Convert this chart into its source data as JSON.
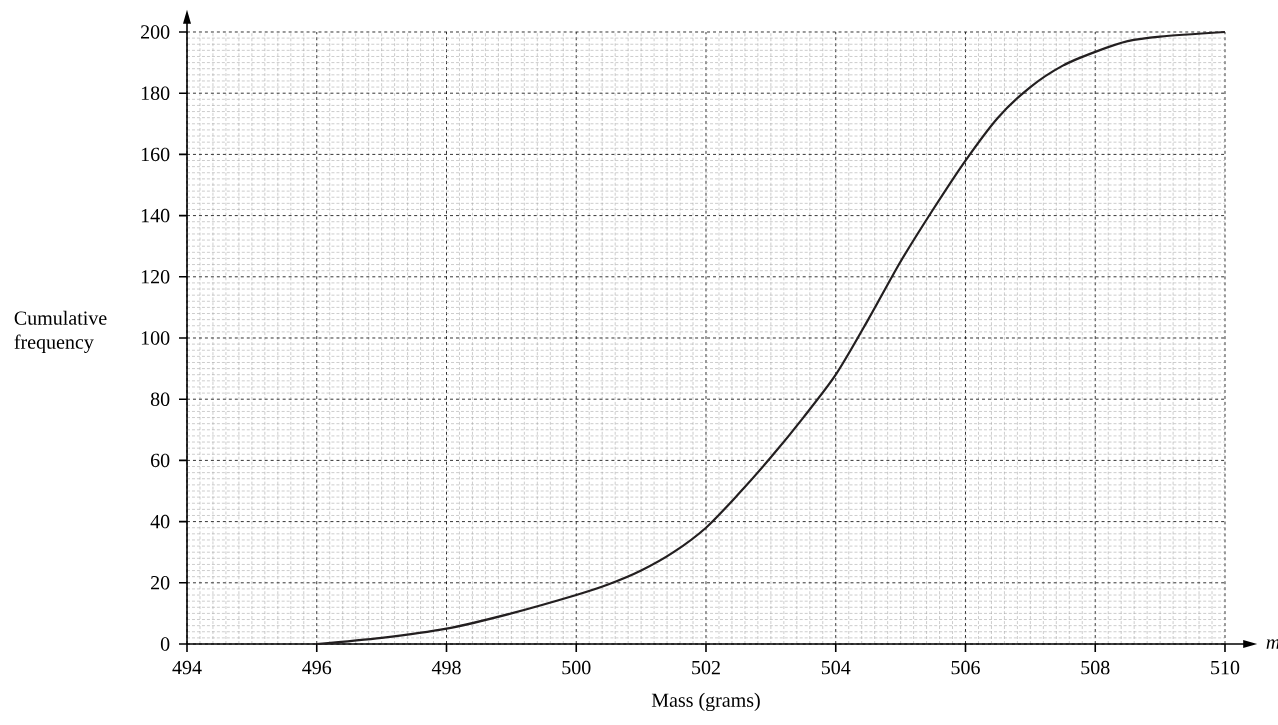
{
  "chart_data": {
    "type": "line",
    "xlabel": "Mass (grams)",
    "ylabel": "Cumulative frequency",
    "annotations": [
      "m"
    ],
    "x": [
      496,
      497,
      498,
      499,
      500,
      500.5,
      501,
      501.5,
      502,
      502.5,
      503,
      503.5,
      504,
      504.5,
      505,
      505.5,
      506,
      506.5,
      507,
      507.5,
      508,
      508.5,
      509,
      510
    ],
    "series": [
      {
        "color": "#231f20",
        "values": [
          0,
          2,
          5,
          10,
          16,
          19.5,
          24,
          30,
          38,
          49,
          61,
          74,
          88,
          106,
          125,
          142,
          158,
          172,
          182,
          189,
          193.5,
          197,
          198.5,
          200
        ]
      }
    ],
    "xlim": [
      494,
      510
    ],
    "ylim": [
      0,
      200
    ],
    "xticks": [
      494,
      496,
      498,
      500,
      502,
      504,
      506,
      508,
      510
    ],
    "yticks": [
      0,
      20,
      40,
      60,
      80,
      100,
      120,
      140,
      160,
      180,
      200
    ],
    "grid": true,
    "marker": "none",
    "line_style": "solid"
  }
}
